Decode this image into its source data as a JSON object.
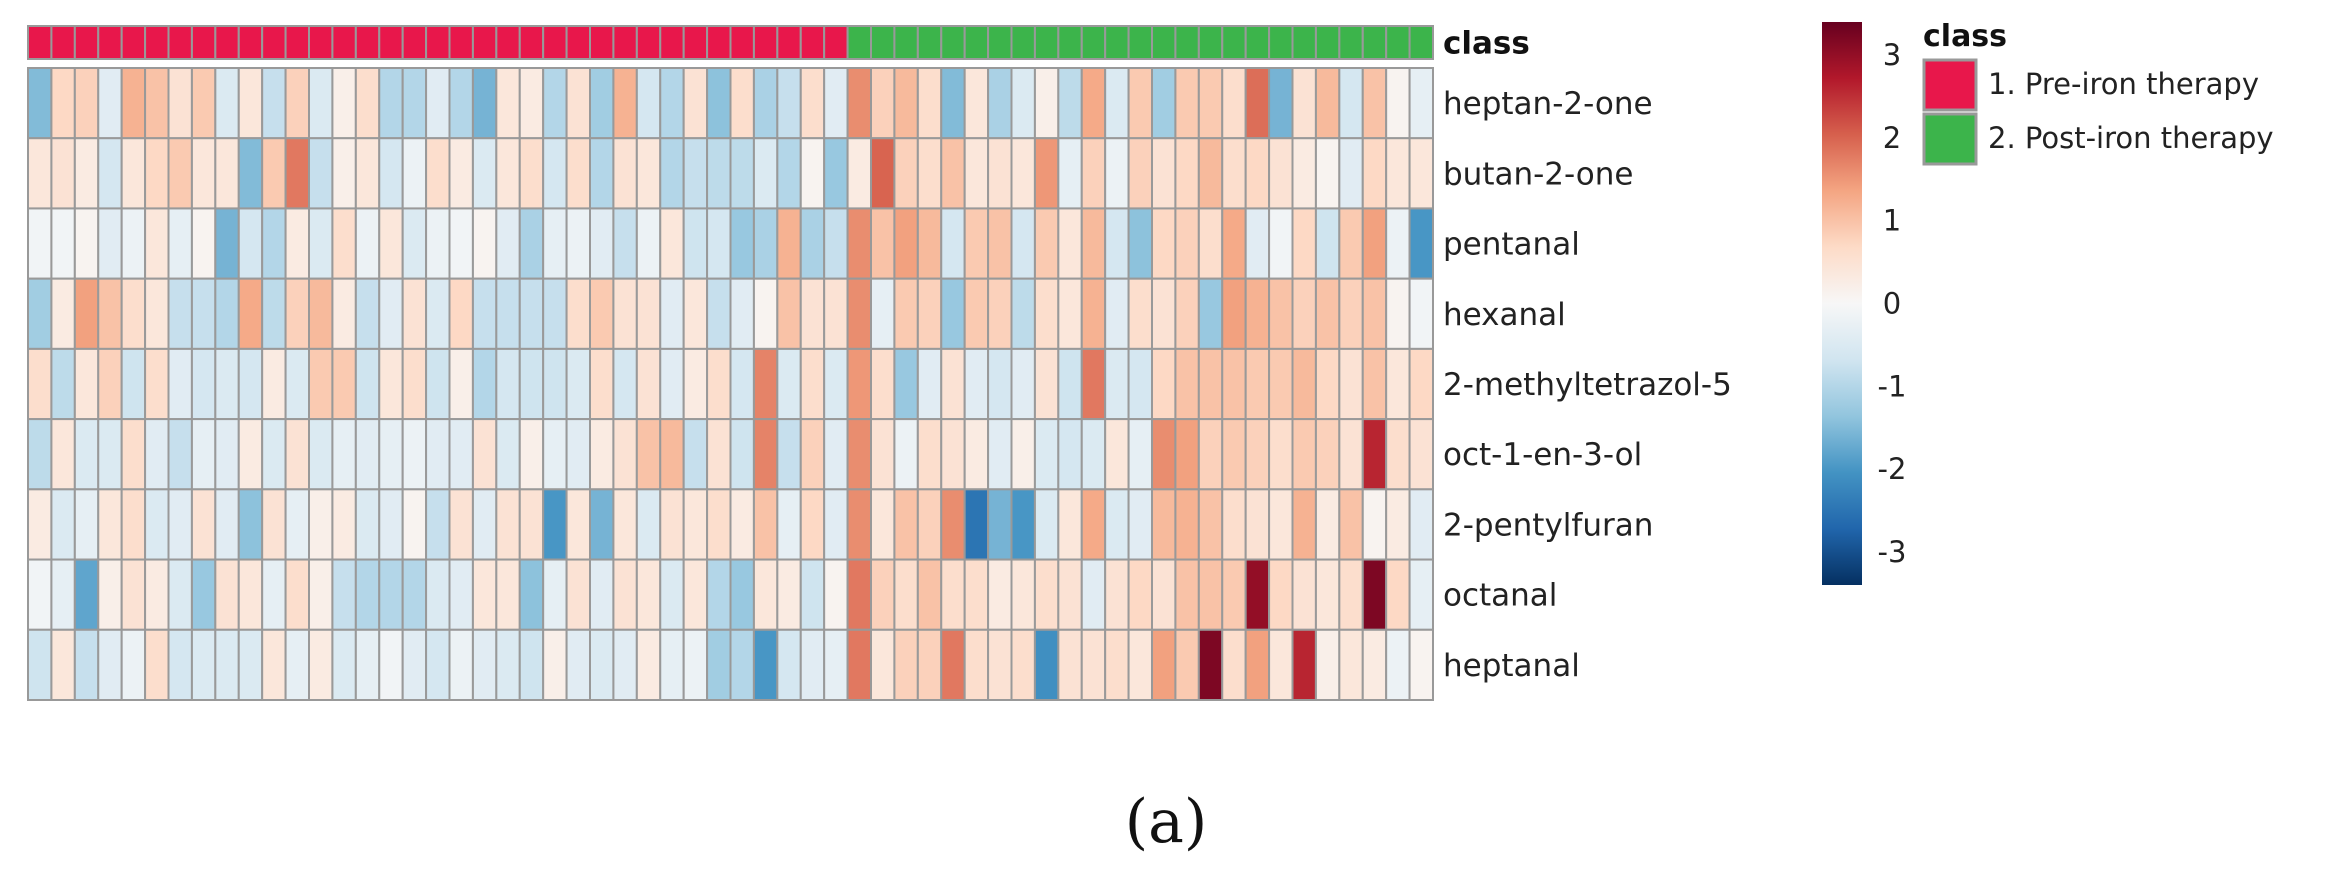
{
  "chart_data": {
    "type": "heatmap",
    "class_track_label": "class",
    "rows": [
      "heptan-2-one",
      "butan-2-one",
      "pentanal",
      "hexanal",
      "2-methyltetrazol-5",
      "oct-1-en-3-ol",
      "2-pentylfuran",
      "octanal",
      "heptanal"
    ],
    "class_assignment": [
      1,
      1,
      1,
      1,
      1,
      1,
      1,
      1,
      1,
      1,
      1,
      1,
      1,
      1,
      1,
      1,
      1,
      1,
      1,
      1,
      1,
      1,
      1,
      1,
      1,
      1,
      1,
      1,
      1,
      1,
      1,
      1,
      1,
      1,
      1,
      2,
      2,
      2,
      2,
      2,
      2,
      2,
      2,
      2,
      2,
      2,
      2,
      2,
      2,
      2,
      2,
      2,
      2,
      2,
      2,
      2,
      2,
      2,
      2,
      2
    ],
    "values": [
      [
        -1.5,
        0.7,
        0.8,
        -0.4,
        1.2,
        1.0,
        0.5,
        0.9,
        -0.5,
        0.4,
        -0.8,
        0.8,
        -0.5,
        0.2,
        0.6,
        -1.0,
        -1.0,
        -0.4,
        -1.0,
        -1.6,
        0.4,
        0.3,
        -1.0,
        0.5,
        -1.2,
        1.2,
        -0.6,
        -1.0,
        0.5,
        -1.4,
        0.6,
        -1.1,
        -0.8,
        0.6,
        -0.4,
        1.6,
        0.8,
        1.1,
        0.6,
        -1.5,
        0.4,
        -1.1,
        -0.5,
        0.2,
        -0.9,
        1.3,
        -0.5,
        0.9,
        -1.2,
        0.9,
        0.9,
        0.6,
        1.9,
        -1.6,
        0.5,
        1.1,
        -0.6,
        1.0,
        0.1,
        -0.3
      ],
      [
        0.4,
        0.5,
        0.3,
        -0.6,
        0.4,
        0.7,
        0.9,
        0.4,
        0.4,
        -1.5,
        0.9,
        1.8,
        -0.8,
        0.2,
        0.4,
        -0.6,
        -0.2,
        0.6,
        0.3,
        -0.5,
        0.4,
        0.6,
        -0.6,
        0.6,
        -1.0,
        0.5,
        0.4,
        -1.0,
        -0.8,
        -0.9,
        -0.9,
        -0.5,
        -1.0,
        0.1,
        -1.3,
        0.3,
        2.0,
        0.8,
        0.6,
        1.0,
        0.4,
        0.5,
        0.4,
        1.5,
        -0.3,
        0.8,
        -0.2,
        0.8,
        0.5,
        0.7,
        1.1,
        0.6,
        0.7,
        0.5,
        0.3,
        0.1,
        -0.4,
        0.7,
        0.4,
        0.4
      ],
      [
        -0.1,
        -0.1,
        0.1,
        -0.4,
        -0.2,
        0.4,
        -0.3,
        0.1,
        -1.6,
        -0.6,
        -1.0,
        0.3,
        -0.5,
        0.6,
        -0.2,
        0.4,
        -0.5,
        -0.2,
        -0.1,
        0.1,
        -0.4,
        -1.1,
        -0.3,
        -0.2,
        -0.4,
        -0.8,
        -0.2,
        0.4,
        -0.7,
        -0.6,
        -1.3,
        -1.1,
        1.2,
        -1.1,
        -0.8,
        1.6,
        1.0,
        1.4,
        1.1,
        -0.6,
        0.9,
        1.0,
        -0.6,
        0.9,
        0.4,
        1.1,
        -0.6,
        -1.4,
        0.7,
        0.8,
        0.6,
        1.3,
        -0.4,
        -0.1,
        0.7,
        -0.7,
        0.9,
        1.4,
        -0.2,
        -2.0
      ],
      [
        -1.2,
        0.3,
        1.4,
        1.0,
        0.6,
        0.4,
        -0.8,
        -0.8,
        -1.0,
        1.3,
        -0.9,
        0.8,
        1.1,
        0.3,
        -0.8,
        -0.4,
        0.5,
        -0.5,
        0.7,
        -0.8,
        -0.8,
        -0.8,
        -0.8,
        0.6,
        0.9,
        0.5,
        0.5,
        -0.4,
        0.4,
        -0.8,
        -0.4,
        0.1,
        1.0,
        0.5,
        0.5,
        1.6,
        -0.3,
        0.9,
        0.8,
        -1.3,
        0.9,
        0.8,
        -0.9,
        0.6,
        0.4,
        1.2,
        -0.4,
        0.6,
        0.5,
        0.8,
        -1.3,
        1.4,
        1.2,
        1.0,
        0.8,
        1.0,
        0.8,
        1.0,
        0.1,
        -0.1
      ],
      [
        0.6,
        -0.9,
        0.4,
        0.8,
        -0.7,
        0.6,
        -0.4,
        -0.6,
        -0.5,
        -0.6,
        0.3,
        -0.5,
        0.9,
        0.9,
        -0.7,
        0.4,
        0.6,
        -0.7,
        0.2,
        -1.0,
        -0.6,
        -0.7,
        -0.7,
        -0.5,
        0.6,
        -0.6,
        0.5,
        -0.4,
        0.3,
        0.6,
        -0.6,
        1.7,
        -0.5,
        0.6,
        -0.5,
        1.5,
        0.6,
        -1.3,
        -0.4,
        0.5,
        -0.4,
        -0.6,
        -0.4,
        0.5,
        -0.7,
        1.8,
        -0.5,
        -0.6,
        0.7,
        1.0,
        1.0,
        1.0,
        0.9,
        0.9,
        1.1,
        0.7,
        0.5,
        1.0,
        0.4,
        0.7
      ],
      [
        -0.9,
        0.4,
        -0.5,
        -0.5,
        0.6,
        -0.4,
        -0.8,
        -0.3,
        -0.4,
        0.3,
        -0.5,
        0.5,
        -0.5,
        -0.3,
        -0.4,
        -0.3,
        -0.2,
        -0.4,
        -0.4,
        0.5,
        -0.5,
        0.2,
        -0.3,
        -0.4,
        0.3,
        0.5,
        1.0,
        1.1,
        -0.8,
        0.5,
        -0.7,
        1.7,
        -0.8,
        0.8,
        -0.4,
        1.6,
        0.5,
        -0.2,
        0.6,
        0.5,
        0.3,
        -0.4,
        0.2,
        -0.5,
        -0.6,
        -0.5,
        0.4,
        -0.3,
        1.6,
        1.4,
        0.8,
        0.9,
        0.8,
        0.6,
        0.9,
        0.8,
        0.5,
        2.6,
        0.6,
        0.5
      ],
      [
        0.3,
        -0.5,
        -0.3,
        0.4,
        0.6,
        -0.5,
        -0.4,
        0.5,
        -0.4,
        -1.4,
        0.5,
        -0.3,
        0.2,
        0.3,
        -0.5,
        -0.4,
        0.1,
        -0.8,
        0.5,
        -0.4,
        0.5,
        0.5,
        -2.0,
        0.4,
        -1.6,
        0.4,
        -0.5,
        0.5,
        0.4,
        0.6,
        0.3,
        1.0,
        -0.3,
        0.7,
        -0.4,
        1.6,
        0.4,
        1.0,
        0.8,
        1.6,
        -2.5,
        -1.6,
        -2.0,
        -0.5,
        0.4,
        1.3,
        -0.5,
        -0.4,
        1.1,
        1.2,
        1.0,
        0.6,
        0.5,
        0.4,
        1.2,
        0.3,
        1.0,
        0.1,
        0.3,
        -0.4
      ],
      [
        -0.1,
        -0.3,
        -1.8,
        0.2,
        0.5,
        0.3,
        -0.5,
        -1.3,
        0.5,
        0.4,
        -0.3,
        0.6,
        0.2,
        -0.8,
        -1.0,
        -1.0,
        -1.0,
        -0.5,
        -0.4,
        0.4,
        0.4,
        -1.4,
        -0.3,
        0.5,
        -0.4,
        0.5,
        0.4,
        -0.5,
        0.4,
        -1.0,
        -1.3,
        0.4,
        0.3,
        -0.7,
        0.1,
        1.8,
        0.8,
        0.6,
        1.0,
        0.6,
        0.6,
        0.3,
        0.4,
        0.6,
        0.5,
        -0.4,
        0.5,
        0.7,
        0.5,
        1.0,
        1.0,
        0.9,
        3.0,
        0.7,
        0.5,
        0.4,
        0.6,
        3.2,
        0.7,
        -0.3
      ],
      [
        -0.7,
        0.4,
        -0.8,
        -0.4,
        -0.2,
        0.6,
        -0.6,
        -0.5,
        -0.5,
        -0.5,
        0.4,
        -0.3,
        0.3,
        -0.5,
        -0.3,
        -0.1,
        -0.4,
        -0.6,
        -0.2,
        -0.4,
        -0.5,
        -0.7,
        0.2,
        -0.4,
        -0.5,
        -0.4,
        0.3,
        -0.3,
        -0.2,
        -1.2,
        -1.0,
        -2.0,
        -0.6,
        -0.4,
        -0.3,
        1.8,
        0.4,
        0.8,
        0.8,
        1.8,
        0.6,
        0.5,
        0.6,
        -2.1,
        0.5,
        0.5,
        0.6,
        0.4,
        1.4,
        0.9,
        3.2,
        0.6,
        1.4,
        0.4,
        2.6,
        0.2,
        0.4,
        0.3,
        -0.2,
        0.1
      ]
    ],
    "colorbar": {
      "min": -3.4,
      "max": 3.4,
      "ticks": [
        3,
        2,
        1,
        0,
        -1,
        -2,
        -3
      ],
      "tick_labels": [
        "3",
        "2",
        "1",
        "0",
        "-1",
        "-2",
        "-3"
      ],
      "colors": [
        "#053061",
        "#2166ac",
        "#4393c3",
        "#92c5de",
        "#d1e5f0",
        "#f7f7f7",
        "#fddbc7",
        "#f4a582",
        "#d6604d",
        "#b2182b",
        "#67001f"
      ]
    },
    "legend": {
      "title": "class",
      "placement": "right",
      "entries": [
        {
          "label": "1. Pre-iron therapy",
          "color": "#e8174b"
        },
        {
          "label": "2. Post-iron therapy",
          "color": "#3cb44b"
        }
      ]
    },
    "cell_border_color": "#999999",
    "panel_caption": "(a)"
  }
}
